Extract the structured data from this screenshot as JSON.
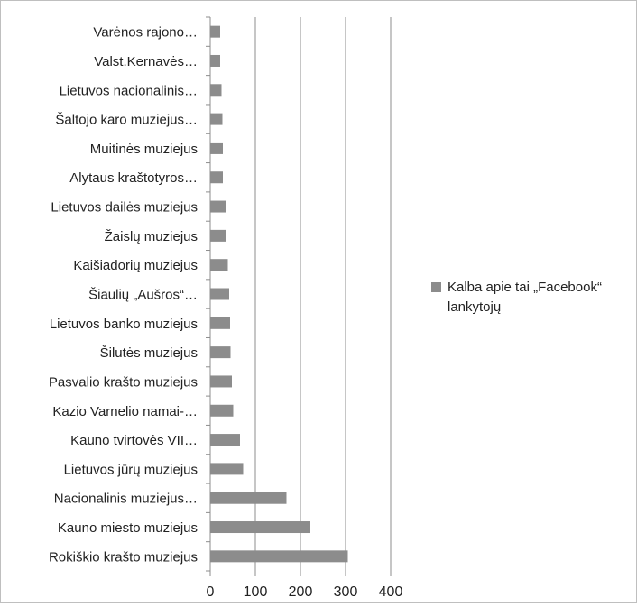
{
  "chart_data": {
    "type": "bar",
    "orientation": "horizontal",
    "categories": [
      "Varėnos rajono…",
      "Valst.Kernavės…",
      "Lietuvos nacionalinis…",
      "Šaltojo karo muziejus…",
      "Muitinės muziejus",
      "Alytaus kraštotyros…",
      "Lietuvos dailės muziejus",
      "Žaislų muziejus",
      "Kaišiadorių muziejus",
      "Šiaulių „Aušros“…",
      "Lietuvos banko muziejus",
      "Šilutės muziejus",
      "Pasvalio krašto muziejus",
      "Kazio Varnelio namai-…",
      "Kauno tvirtovės VII…",
      "Lietuvos jūrų muziejus",
      "Nacionalinis muziejus…",
      "Kauno miesto muziejus",
      "Rokiškio krašto muziejus"
    ],
    "series": [
      {
        "name": "Kalba apie tai „Facebook“ lankytojų",
        "color": "#8c8c8c",
        "values": [
          22,
          22,
          25,
          27,
          28,
          28,
          34,
          36,
          39,
          42,
          44,
          45,
          48,
          51,
          66,
          73,
          169,
          222,
          305
        ]
      }
    ],
    "xlim": [
      0,
      400
    ],
    "xticks": [
      "0",
      "100",
      "200",
      "300",
      "400"
    ],
    "grid": "vertical",
    "legend_position": "right",
    "title": "",
    "xlabel": "",
    "ylabel": ""
  }
}
